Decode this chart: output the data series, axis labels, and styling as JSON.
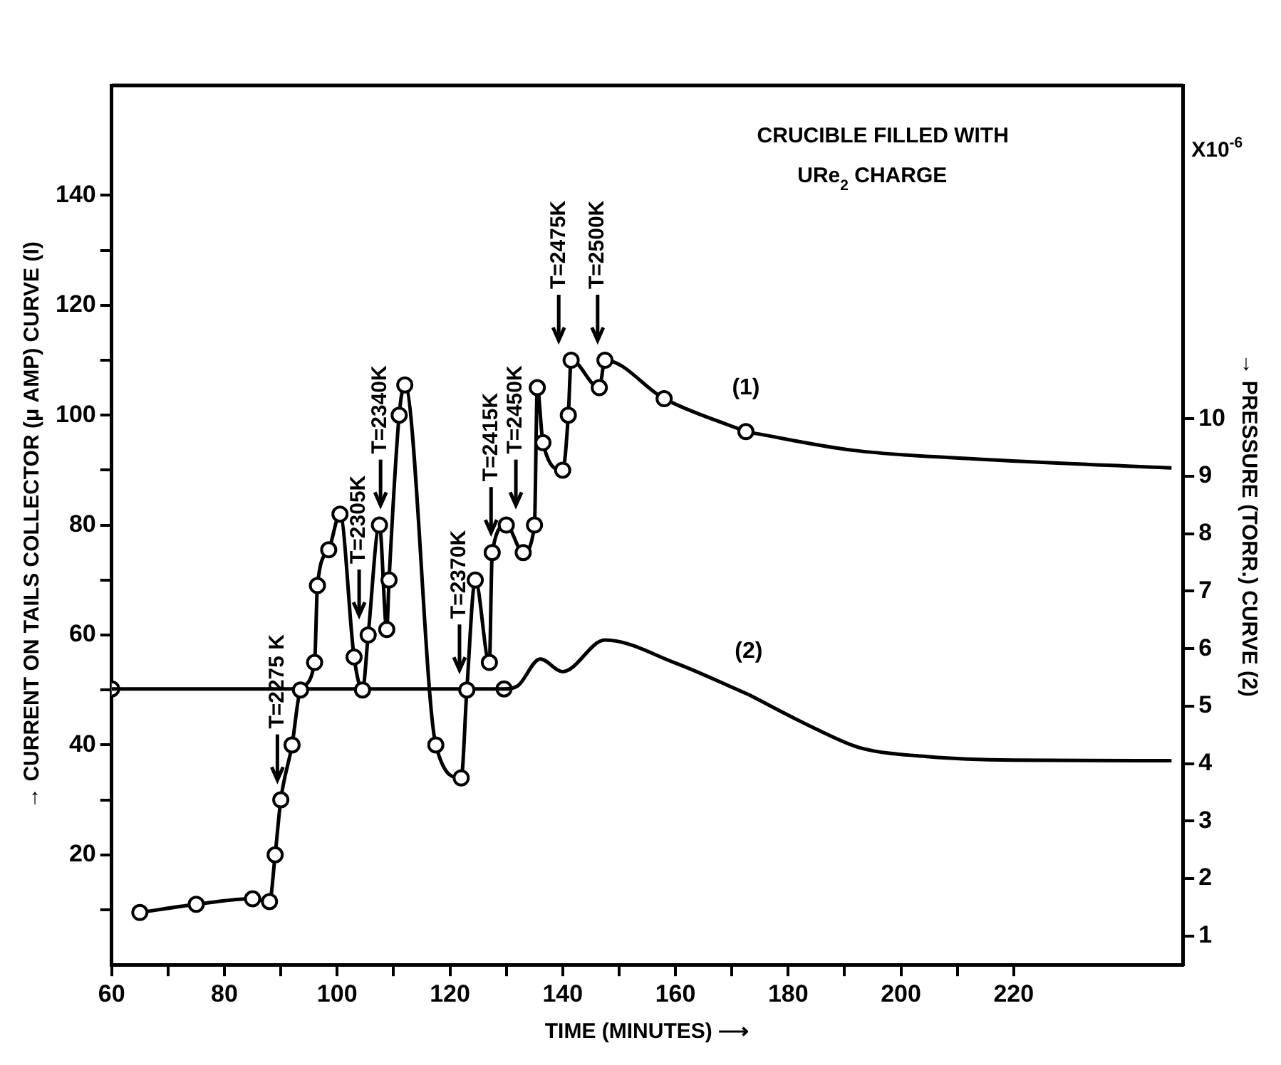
{
  "chart_data": {
    "type": "line",
    "title": "CRUCIBLE FILLED WITH\nURe$_{2}$ CHARGE",
    "xlabel": "TIME (MINUTES) ⟶",
    "ylabel": "→ CURRENT ON TAILS COLLECTOR (μ AMP) CURVE (I)",
    "y2label": "→ PRESSURE (TORR.) CURVE (2)",
    "annotations": [
      "X10$^{-6}$",
      {
        "text": "T=2275 K",
        "x": 89.4
      },
      {
        "text": "T=2305K",
        "x": 103.9
      },
      {
        "text": "T=2340K",
        "x": 107.7
      },
      {
        "text": "T=2370K",
        "x": 121.7
      },
      {
        "text": "T=2415K",
        "x": 127.3
      },
      {
        "text": "T=2450K",
        "x": 131.7
      },
      {
        "text": "T=2475K",
        "x": 139.3
      },
      {
        "text": "T=2500K",
        "x": 146.2
      }
    ],
    "xlim": [
      60,
      250
    ],
    "xticks": [
      60,
      {
        "value": 70,
        "label": null
      },
      80,
      {
        "value": 90,
        "label": null
      },
      100,
      {
        "value": 110,
        "label": null
      },
      120,
      {
        "value": 130,
        "label": null
      },
      140,
      {
        "value": 150,
        "label": null
      },
      160,
      {
        "value": 170,
        "label": null
      },
      180,
      {
        "value": 190,
        "label": null
      },
      200,
      {
        "value": 210,
        "label": null
      },
      220
    ],
    "ylim": [
      0,
      160
    ],
    "yticks": [
      {
        "value": 10,
        "label": null
      },
      20,
      {
        "value": 30,
        "label": null
      },
      40,
      {
        "value": 50,
        "label": null
      },
      60,
      {
        "value": 70,
        "label": null
      },
      80,
      {
        "value": 90,
        "label": null
      },
      100,
      {
        "value": 110,
        "label": null
      },
      120,
      {
        "value": 130,
        "label": null
      },
      140
    ],
    "y2lim": [
      0.5,
      15.8
    ],
    "y2ticks": [
      1,
      2,
      3,
      4,
      5,
      6,
      7,
      8,
      9,
      10
    ],
    "series": [
      {
        "name": "(1)",
        "type": "line",
        "color": "#000000",
        "marker": "circle",
        "x": [
          65,
          75,
          85,
          88,
          89,
          90,
          92,
          93.5,
          96,
          96.5,
          98.5,
          100.5,
          103,
          104.5,
          105.5,
          107.5,
          108.8,
          109.2,
          111,
          112,
          117.5,
          122,
          123,
          124.5,
          127,
          127.5,
          130,
          133,
          135,
          135.5,
          136.5,
          140,
          141,
          141.5,
          146.5,
          147.5,
          158,
          172.5
        ],
        "values": [
          9.5,
          11,
          12,
          11.5,
          20,
          30,
          40,
          50,
          55,
          69,
          75.5,
          82,
          56,
          50,
          60,
          80,
          61,
          70,
          100,
          105.5,
          40,
          34,
          50,
          70,
          55,
          75,
          80,
          75,
          80,
          105,
          95,
          90,
          100,
          110,
          105,
          110,
          103,
          97
        ]
      },
      {
        "type": "line",
        "color": "#000000",
        "marker": "none",
        "x": [
          172.5,
          191.6,
          213.8,
          248
        ],
        "values": [
          97,
          93.6,
          92,
          90.4
        ]
      },
      {
        "name": "(2)",
        "type": "line",
        "axis": "y2",
        "color": "#000000",
        "marker": "none",
        "x": [
          60,
          129.6,
          132,
          136,
          140,
          147.5,
          160,
          173
        ],
        "values": [
          5.3,
          5.3,
          5.35,
          5.82,
          5.6,
          6.15,
          5.75,
          5.2
        ]
      },
      {
        "type": "line",
        "axis": "y2",
        "color": "#000000",
        "marker": "none",
        "x": [
          173,
          185,
          192.6,
          205,
          220,
          248
        ],
        "values": [
          5.2,
          4.6,
          4.28,
          4.12,
          4.06,
          4.05
        ]
      },
      {
        "type": "scatter",
        "axis": "y2",
        "color": "#000000",
        "marker": "circle",
        "x": [
          60,
          129.6
        ],
        "values": [
          5.3,
          5.3
        ]
      }
    ]
  }
}
